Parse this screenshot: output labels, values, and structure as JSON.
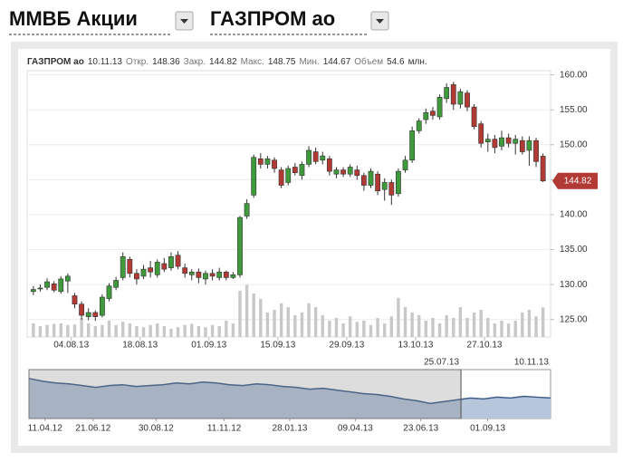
{
  "header": {
    "market": "ММВБ Акции",
    "instrument": "ГАЗПРОМ ао"
  },
  "chart_data": {
    "type": "candlestick",
    "info": {
      "name": "ГАЗПРОМ ао",
      "date": "10.11.13",
      "fields": [
        {
          "label": "Откр.",
          "value": 148.36
        },
        {
          "label": "Закр.",
          "value": 144.82
        },
        {
          "label": "Макс.",
          "value": 148.75
        },
        {
          "label": "Мин.",
          "value": 144.67
        },
        {
          "label": "Объем",
          "value": 54.6,
          "unit": "млн."
        }
      ]
    },
    "candles": {
      "open": [
        129.0,
        129.4,
        129.6,
        130.1,
        129.0,
        130.5,
        128.4,
        127.2,
        125.4,
        126.0,
        125.6,
        128.0,
        129.6,
        131.0,
        133.6,
        131.6,
        131.2,
        132.4,
        131.4,
        133.0,
        132.4,
        134.2,
        132.4,
        131.4,
        131.8,
        130.8,
        131.6,
        131.0,
        131.8,
        131.0,
        131.4,
        139.8,
        142.8,
        148.0,
        147.2,
        147.8,
        146.4,
        144.6,
        146.8,
        145.6,
        147.2,
        149.0,
        147.8,
        148.0,
        145.8,
        146.4,
        145.8,
        146.4,
        145.6,
        144.2,
        145.8,
        143.6,
        144.6,
        143.0,
        146.4,
        147.8,
        152.0,
        153.6,
        154.8,
        154.0,
        156.6,
        158.6,
        155.8,
        157.4,
        155.4,
        153.0,
        150.4,
        150.8,
        149.8,
        151.0,
        150.2,
        150.6,
        149.2,
        150.6,
        148.36
      ],
      "high": [
        129.8,
        130.0,
        130.9,
        130.5,
        131.2,
        131.6,
        128.8,
        127.6,
        126.6,
        126.3,
        128.6,
        130.2,
        131.1,
        134.6,
        134.0,
        132.2,
        132.8,
        133.4,
        133.6,
        133.8,
        134.6,
        134.8,
        133.0,
        132.2,
        132.3,
        132.0,
        132.2,
        132.4,
        132.0,
        131.8,
        139.8,
        142.2,
        148.6,
        148.8,
        148.4,
        148.2,
        146.8,
        147.0,
        147.4,
        147.6,
        149.8,
        149.6,
        149.0,
        148.4,
        146.8,
        146.8,
        147.2,
        147.0,
        146.0,
        146.6,
        146.2,
        145.2,
        145.0,
        146.6,
        148.4,
        152.6,
        153.8,
        155.2,
        155.4,
        157.2,
        158.8,
        159.0,
        158.0,
        157.8,
        155.8,
        153.4,
        151.6,
        151.4,
        152.0,
        151.6,
        151.4,
        151.2,
        151.2,
        151.0,
        148.75
      ],
      "low": [
        128.5,
        129.0,
        129.2,
        128.9,
        128.7,
        128.8,
        126.6,
        125.0,
        124.9,
        124.8,
        125.3,
        127.6,
        129.2,
        130.6,
        131.0,
        130.0,
        130.8,
        131.0,
        131.0,
        131.8,
        132.0,
        132.2,
        131.0,
        130.6,
        130.2,
        130.0,
        130.6,
        130.6,
        130.6,
        130.8,
        131.0,
        139.4,
        142.4,
        146.6,
        146.6,
        146.0,
        143.8,
        144.2,
        145.6,
        145.0,
        146.8,
        147.2,
        147.2,
        145.6,
        145.2,
        145.4,
        145.4,
        145.0,
        143.4,
        143.8,
        142.8,
        142.0,
        141.4,
        142.6,
        146.0,
        147.4,
        151.6,
        153.0,
        153.6,
        153.6,
        156.0,
        155.0,
        155.2,
        154.8,
        152.2,
        149.6,
        149.0,
        148.8,
        149.2,
        149.6,
        148.6,
        148.6,
        147.0,
        146.8,
        144.67
      ],
      "close": [
        129.3,
        129.5,
        130.4,
        129.2,
        130.8,
        131.2,
        127.2,
        125.6,
        126.0,
        125.4,
        128.2,
        129.8,
        130.6,
        134.0,
        131.6,
        130.8,
        132.2,
        131.8,
        133.2,
        132.2,
        134.0,
        132.6,
        131.6,
        131.8,
        131.0,
        131.6,
        131.2,
        131.8,
        131.0,
        131.4,
        139.6,
        141.6,
        148.2,
        147.2,
        148.0,
        146.6,
        144.2,
        146.6,
        146.0,
        147.2,
        149.2,
        147.6,
        148.4,
        146.2,
        146.4,
        145.8,
        146.8,
        145.6,
        144.2,
        146.2,
        143.4,
        144.6,
        142.8,
        146.2,
        147.8,
        152.0,
        153.4,
        154.6,
        154.2,
        156.8,
        158.2,
        155.8,
        157.6,
        155.4,
        152.6,
        150.2,
        150.8,
        149.6,
        151.0,
        150.2,
        150.8,
        149.0,
        150.6,
        147.6,
        144.82
      ]
    },
    "volume": [
      25,
      20,
      22,
      24,
      25,
      22,
      23,
      35,
      25,
      20,
      22,
      30,
      22,
      28,
      25,
      20,
      18,
      22,
      25,
      20,
      15,
      18,
      22,
      24,
      20,
      18,
      22,
      20,
      30,
      25,
      85,
      96,
      80,
      70,
      45,
      50,
      62,
      55,
      40,
      45,
      62,
      55,
      40,
      30,
      35,
      25,
      38,
      28,
      30,
      22,
      35,
      25,
      38,
      72,
      55,
      45,
      40,
      30,
      35,
      25,
      40,
      35,
      55,
      35,
      45,
      50,
      35,
      25,
      30,
      25,
      30,
      45,
      50,
      38,
      54.6
    ],
    "vlim": [
      0,
      200
    ],
    "xlim": [
      -0.9,
      75.1
    ],
    "ylim": [
      122.5,
      160.6
    ],
    "yticks": [
      {
        "value": 125,
        "label": "125.00"
      },
      {
        "value": 130,
        "label": "130.00"
      },
      {
        "value": 135,
        "label": "135.00"
      },
      {
        "value": 140,
        "label": "140.00"
      },
      {
        "value": 145,
        "label": "145.00"
      },
      {
        "value": 150,
        "label": "150.00"
      },
      {
        "value": 155,
        "label": "155.00"
      },
      {
        "value": 160,
        "label": "160.00"
      }
    ],
    "xticks": [
      {
        "value": 5.5,
        "label": "04.08.13"
      },
      {
        "value": 15.5,
        "label": "18.08.13"
      },
      {
        "value": 25.5,
        "label": "01.09.13"
      },
      {
        "value": 35.5,
        "label": "15.09.13"
      },
      {
        "value": 45.5,
        "label": "29.09.13"
      },
      {
        "value": 55.5,
        "label": "13.10.13"
      },
      {
        "value": 65.5,
        "label": "27.10.13"
      }
    ],
    "grid": true,
    "up_color": "#3f9a3c",
    "down_color": "#b23a35",
    "volume_color": "#c8c8c8",
    "navigator": {
      "values": [
        155,
        152,
        150,
        149,
        147,
        145,
        147,
        148,
        146,
        147,
        148,
        150,
        149,
        151,
        150,
        148,
        147,
        149,
        148,
        146,
        145,
        143,
        144,
        142,
        140,
        138,
        137,
        135,
        132,
        130,
        127,
        129,
        131,
        133,
        132,
        134,
        133,
        135,
        134,
        133
      ],
      "xlim": [
        0,
        39
      ],
      "ylim": [
        110,
        165
      ],
      "xticks": [
        {
          "value": 1.2,
          "label": "11.04.12"
        },
        {
          "value": 4.8,
          "label": "21.06.12"
        },
        {
          "value": 9.5,
          "label": "30.08.12"
        },
        {
          "value": 14.6,
          "label": "11.11.12"
        },
        {
          "value": 19.5,
          "label": "28.01.13"
        },
        {
          "value": 24.4,
          "label": "09.04.13"
        },
        {
          "value": 29.3,
          "label": "23.06.13"
        },
        {
          "value": 34.3,
          "label": "01.09.13"
        }
      ],
      "selection": [
        {
          "value": 32.3,
          "label": "25.07.13"
        },
        {
          "value": 39,
          "label": "10.11.13"
        }
      ],
      "line_color": "#3d5e8c",
      "fill_color": "#b7c7db"
    }
  }
}
